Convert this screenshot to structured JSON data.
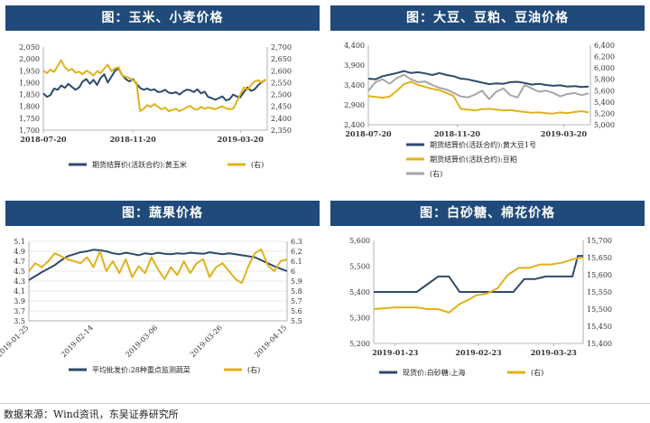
{
  "colors": {
    "navy": "#2e4a6b",
    "gold": "#e0b21a",
    "gray": "#a6a6a6",
    "title_bg": "#1f4a7a",
    "grid": "#e3e3e3"
  },
  "source": "数据来源：Wind资讯，东吴证券研究所",
  "chart_data": [
    {
      "type": "line",
      "title": "图：玉米、小麦价格",
      "x_labels": [
        "2018-07-20",
        "2018-11-20",
        "2019-03-20"
      ],
      "x_label_pos": [
        0,
        100,
        220
      ],
      "x_range": [
        0,
        250
      ],
      "left_ticks": [
        "2,050",
        "2,000",
        "1,950",
        "1,900",
        "1,850",
        "1,800",
        "1,750",
        "1,700"
      ],
      "left_range": [
        1700,
        2050
      ],
      "right_ticks": [
        "2,700",
        "2,650",
        "2,600",
        "2,550",
        "2,500",
        "2,450",
        "2,400",
        "2,350"
      ],
      "right_range": [
        2350,
        2700
      ],
      "series": [
        {
          "name": "期货结算价(活跃合约):黄玉米",
          "axis": "left",
          "color": "#2e4a6b",
          "x": [
            0,
            4,
            8,
            12,
            16,
            20,
            24,
            28,
            32,
            36,
            40,
            44,
            48,
            52,
            56,
            60,
            64,
            68,
            72,
            76,
            80,
            84,
            88,
            92,
            96,
            100,
            104,
            108,
            112,
            116,
            120,
            124,
            128,
            132,
            136,
            140,
            144,
            148,
            152,
            156,
            160,
            164,
            168,
            172,
            176,
            180,
            184,
            188,
            192,
            196,
            200,
            204,
            208,
            212,
            216,
            220,
            224,
            228,
            232,
            236,
            240,
            244,
            248
          ],
          "values": [
            1855,
            1840,
            1848,
            1875,
            1870,
            1888,
            1878,
            1895,
            1882,
            1870,
            1880,
            1905,
            1915,
            1895,
            1912,
            1890,
            1920,
            1935,
            1900,
            1925,
            1950,
            1960,
            1932,
            1915,
            1905,
            1915,
            1895,
            1878,
            1870,
            1875,
            1868,
            1872,
            1860,
            1862,
            1870,
            1858,
            1855,
            1860,
            1850,
            1862,
            1870,
            1868,
            1860,
            1872,
            1855,
            1862,
            1840,
            1835,
            1828,
            1835,
            1842,
            1825,
            1830,
            1850,
            1842,
            1838,
            1860,
            1880,
            1865,
            1872,
            1890,
            1902,
            1912
          ]
        },
        {
          "name": "(右)",
          "axis": "right",
          "color": "#e0b21a",
          "x": [
            0,
            4,
            8,
            12,
            16,
            20,
            24,
            28,
            32,
            36,
            40,
            44,
            48,
            52,
            56,
            60,
            64,
            68,
            72,
            76,
            80,
            84,
            88,
            92,
            96,
            100,
            104,
            108,
            112,
            116,
            120,
            124,
            128,
            132,
            136,
            140,
            144,
            148,
            152,
            156,
            160,
            164,
            168,
            172,
            176,
            180,
            184,
            188,
            192,
            196,
            200,
            204,
            208,
            212,
            216,
            220,
            224,
            228,
            232,
            236,
            240,
            244,
            248
          ],
          "values": [
            2600,
            2590,
            2605,
            2595,
            2620,
            2645,
            2615,
            2600,
            2608,
            2592,
            2596,
            2585,
            2600,
            2592,
            2580,
            2598,
            2590,
            2610,
            2625,
            2598,
            2610,
            2615,
            2580,
            2575,
            2570,
            2560,
            2550,
            2430,
            2440,
            2455,
            2448,
            2460,
            2448,
            2438,
            2445,
            2430,
            2435,
            2440,
            2430,
            2438,
            2445,
            2452,
            2440,
            2436,
            2448,
            2440,
            2446,
            2442,
            2438,
            2445,
            2450,
            2442,
            2438,
            2440,
            2470,
            2500,
            2530,
            2520,
            2540,
            2555,
            2560,
            2548,
            2565
          ]
        }
      ]
    },
    {
      "type": "line",
      "title": "图：大豆、豆粕、豆油价格",
      "x_labels": [
        "2018-07-20",
        "2018-11-20",
        "2019-03-20"
      ],
      "x_label_pos": [
        0,
        100,
        220
      ],
      "x_range": [
        0,
        250
      ],
      "left_ticks": [
        "4,400",
        "3,900",
        "3,400",
        "2,900",
        "2,400"
      ],
      "left_range": [
        2400,
        4400
      ],
      "right_ticks": [
        "6,400",
        "6,200",
        "6,000",
        "5,800",
        "5,600",
        "5,400",
        "5,200",
        "5,000"
      ],
      "right_range": [
        5000,
        6400
      ],
      "series": [
        {
          "name": "期货结算价(活跃合约):黄大豆1号",
          "axis": "left",
          "color": "#2e4a6b",
          "x": [
            0,
            8,
            16,
            24,
            32,
            40,
            48,
            56,
            64,
            72,
            80,
            88,
            96,
            104,
            112,
            120,
            128,
            136,
            144,
            152,
            160,
            168,
            176,
            184,
            192,
            200,
            208,
            216,
            224,
            232,
            240,
            248
          ],
          "values": [
            3560,
            3540,
            3620,
            3660,
            3700,
            3750,
            3700,
            3720,
            3690,
            3650,
            3700,
            3650,
            3620,
            3560,
            3540,
            3500,
            3460,
            3420,
            3440,
            3430,
            3470,
            3480,
            3450,
            3410,
            3430,
            3400,
            3380,
            3390,
            3360,
            3370,
            3350,
            3360
          ]
        },
        {
          "name": "期货结算价(活跃合约):豆粕",
          "axis": "left",
          "color": "#e0b21a",
          "x": [
            0,
            8,
            16,
            24,
            32,
            40,
            48,
            56,
            64,
            72,
            80,
            88,
            96,
            104,
            112,
            120,
            128,
            136,
            144,
            152,
            160,
            168,
            176,
            184,
            192,
            200,
            208,
            216,
            224,
            232,
            240,
            248
          ],
          "values": [
            3120,
            3100,
            3080,
            3110,
            3250,
            3420,
            3480,
            3400,
            3350,
            3300,
            3270,
            3200,
            3120,
            2800,
            2780,
            2760,
            2790,
            2800,
            2780,
            2760,
            2770,
            2740,
            2720,
            2700,
            2710,
            2690,
            2680,
            2710,
            2690,
            2720,
            2740,
            2710
          ]
        },
        {
          "name": "(右)",
          "axis": "right",
          "color": "#a6a6a6",
          "x": [
            0,
            8,
            16,
            24,
            32,
            40,
            48,
            56,
            64,
            72,
            80,
            88,
            96,
            104,
            112,
            120,
            128,
            136,
            144,
            152,
            160,
            168,
            176,
            184,
            192,
            200,
            208,
            216,
            224,
            232,
            240,
            248
          ],
          "values": [
            5600,
            5750,
            5800,
            5720,
            5820,
            5880,
            5800,
            5750,
            5760,
            5700,
            5650,
            5620,
            5560,
            5500,
            5480,
            5530,
            5600,
            5450,
            5580,
            5640,
            5520,
            5480,
            5700,
            5640,
            5580,
            5600,
            5560,
            5500,
            5540,
            5560,
            5520,
            5550
          ]
        }
      ]
    },
    {
      "type": "line",
      "title": "图：蔬果价格",
      "x_labels": [
        "2019-01-25",
        "2019-02-14",
        "2019-03-06",
        "2019-03-26",
        "2019-04-15"
      ],
      "x_label_pos": [
        0,
        20,
        40,
        60,
        80
      ],
      "x_range": [
        0,
        80
      ],
      "left_ticks": [
        "5.1",
        "4.9",
        "4.7",
        "4.5",
        "4.3",
        "4.1",
        "3.9",
        "3.7",
        "3.5"
      ],
      "left_range": [
        3.5,
        5.1
      ],
      "right_ticks": [
        "6.3",
        "6.2",
        "6.1",
        "6",
        "5.9",
        "5.8",
        "5.7",
        "5.6",
        "5.5"
      ],
      "right_range": [
        5.5,
        6.3
      ],
      "series": [
        {
          "name": "平均批发价:28种重点监测蔬菜",
          "axis": "left",
          "color": "#2e4a6b",
          "x": [
            0,
            2,
            4,
            6,
            8,
            10,
            12,
            14,
            16,
            18,
            20,
            22,
            24,
            26,
            28,
            30,
            32,
            34,
            36,
            38,
            40,
            42,
            44,
            46,
            48,
            50,
            52,
            54,
            56,
            58,
            60,
            62,
            64,
            66,
            68,
            70,
            72,
            74,
            76,
            78,
            80
          ],
          "values": [
            4.32,
            4.4,
            4.48,
            4.55,
            4.62,
            4.72,
            4.8,
            4.84,
            4.88,
            4.9,
            4.93,
            4.92,
            4.9,
            4.86,
            4.84,
            4.87,
            4.85,
            4.82,
            4.86,
            4.84,
            4.87,
            4.85,
            4.84,
            4.86,
            4.85,
            4.87,
            4.86,
            4.85,
            4.88,
            4.86,
            4.84,
            4.86,
            4.84,
            4.82,
            4.8,
            4.78,
            4.72,
            4.66,
            4.6,
            4.55,
            4.5
          ]
        },
        {
          "name": "(右)",
          "axis": "right",
          "color": "#e0b21a",
          "x": [
            0,
            2,
            4,
            6,
            8,
            10,
            12,
            14,
            16,
            18,
            20,
            22,
            24,
            26,
            28,
            30,
            32,
            34,
            36,
            38,
            40,
            42,
            44,
            46,
            48,
            50,
            52,
            54,
            56,
            58,
            60,
            62,
            64,
            66,
            68,
            70,
            72,
            74,
            76,
            78,
            80
          ],
          "values": [
            6.0,
            6.08,
            6.04,
            6.1,
            6.18,
            6.15,
            6.12,
            6.1,
            6.08,
            6.14,
            6.04,
            6.2,
            6.0,
            6.1,
            5.98,
            6.12,
            5.94,
            6.05,
            5.98,
            6.14,
            6.02,
            5.92,
            6.04,
            5.96,
            6.1,
            5.98,
            6.08,
            6.12,
            5.94,
            6.04,
            6.08,
            6.0,
            5.92,
            5.88,
            6.05,
            6.18,
            6.22,
            6.06,
            6.0,
            6.1,
            6.12
          ]
        }
      ]
    },
    {
      "type": "line",
      "title": "图：白砂糖、棉花价格",
      "x_labels": [
        "2019-01-23",
        "2019-02-23",
        "2019-03-23"
      ],
      "x_label_pos": [
        0,
        31,
        59
      ],
      "x_range": [
        -8,
        70
      ],
      "left_ticks": [
        "5,600",
        "5,500",
        "5,400",
        "5,300",
        "5,200"
      ],
      "left_range": [
        5200,
        5600
      ],
      "right_ticks": [
        "15,700",
        "15,650",
        "15,600",
        "15,550",
        "15,500",
        "15,450",
        "15,400"
      ],
      "right_range": [
        15400,
        15700
      ],
      "series": [
        {
          "name": "现货价:白砂糖:上海",
          "axis": "left",
          "color": "#2e4a6b",
          "x": [
            -8,
            0,
            4,
            8,
            12,
            16,
            20,
            24,
            28,
            32,
            36,
            40,
            44,
            48,
            52,
            56,
            60,
            64,
            66,
            68,
            70
          ],
          "values": [
            5400,
            5400,
            5400,
            5400,
            5430,
            5460,
            5460,
            5400,
            5400,
            5400,
            5400,
            5400,
            5400,
            5450,
            5450,
            5460,
            5460,
            5460,
            5460,
            5540,
            5540
          ]
        },
        {
          "name": "(右)",
          "axis": "right",
          "color": "#e0b21a",
          "x": [
            -8,
            0,
            4,
            8,
            12,
            16,
            20,
            24,
            28,
            30,
            34,
            38,
            42,
            46,
            50,
            54,
            58,
            62,
            66,
            70
          ],
          "values": [
            15500,
            15505,
            15505,
            15505,
            15500,
            15500,
            15490,
            15515,
            15530,
            15540,
            15545,
            15560,
            15600,
            15620,
            15620,
            15630,
            15630,
            15635,
            15645,
            15650
          ]
        }
      ]
    }
  ]
}
